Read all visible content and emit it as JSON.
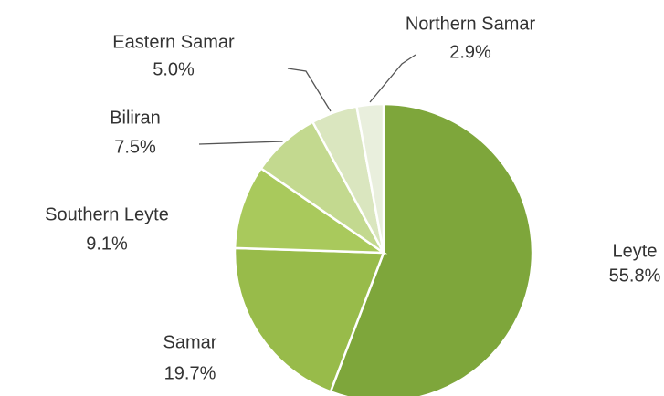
{
  "chart_data": {
    "type": "pie",
    "categories": [
      "Leyte",
      "Samar",
      "Southern Leyte",
      "Biliran",
      "Eastern Samar",
      "Northern Samar"
    ],
    "values": [
      55.8,
      19.7,
      9.1,
      7.5,
      5.0,
      2.9
    ],
    "value_labels": [
      "55.8%",
      "19.7%",
      "9.1%",
      "7.5%",
      "5.0%",
      "2.9%"
    ],
    "colors": [
      "#7ea63b",
      "#98bb4a",
      "#a9c95c",
      "#c3d98f",
      "#dae6bf",
      "#e9efdd"
    ]
  }
}
